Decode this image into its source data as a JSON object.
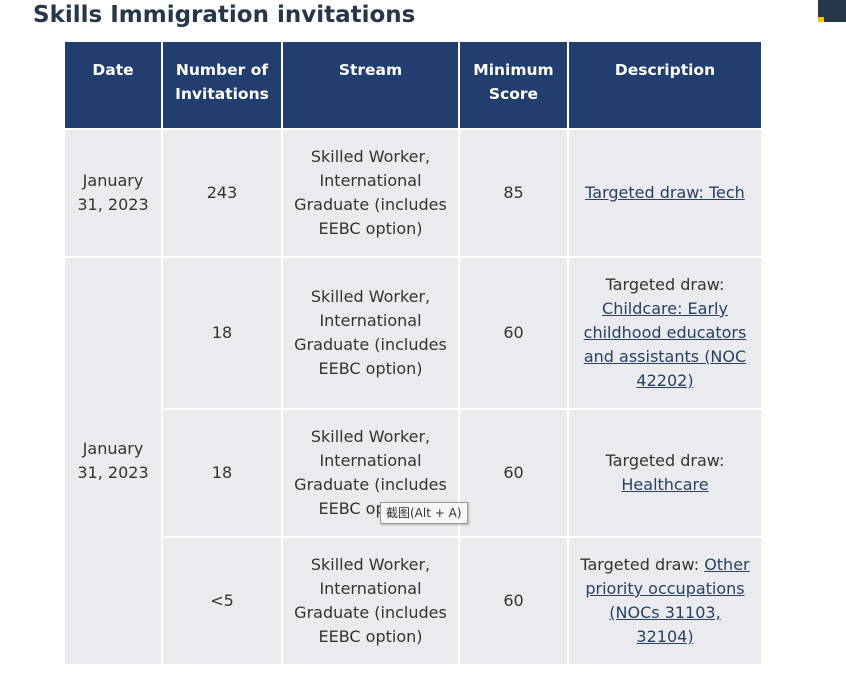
{
  "page": {
    "title": "Skills Immigration invitations"
  },
  "table": {
    "headers": {
      "date": "Date",
      "invitations": "Number of Invitations",
      "stream": "Stream",
      "min_score": "Minimum Score",
      "description": "Description"
    },
    "rows": [
      {
        "date": "January 31, 2023",
        "invitations": "243",
        "stream": "Skilled Worker, International Graduate (includes EEBC option)",
        "min_score": "85",
        "description_prefix": "",
        "description_link": "Targeted draw: Tech"
      },
      {
        "date": "January 31, 2023",
        "invitations": "18",
        "stream": "Skilled Worker, International Graduate (includes EEBC option)",
        "min_score": "60",
        "description_prefix": "Targeted draw:",
        "description_link": "Childcare: Early childhood educators and assistants (NOC 42202)"
      },
      {
        "invitations": "18",
        "stream": "Skilled Worker, International Graduate (includes EEBC option)",
        "min_score": "60",
        "description_prefix": "Targeted draw:",
        "description_link": "Healthcare"
      },
      {
        "invitations": "<5",
        "stream": "Skilled Worker, International Graduate (includes EEBC option)",
        "min_score": "60",
        "description_prefix": "Targeted draw:",
        "description_link": "Other priority occupations (NOCs 31103, 32104)"
      }
    ]
  },
  "tooltip": {
    "text": "截图(Alt + A)"
  },
  "colors": {
    "header_bg": "#213e6f",
    "title": "#26374a",
    "cell_bg": "#eaebef",
    "link": "#284162"
  }
}
